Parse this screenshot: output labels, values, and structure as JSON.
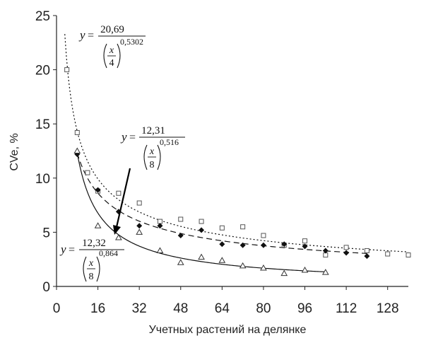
{
  "chart_data": {
    "type": "scatter",
    "xlabel": "Учетных растений на делянке",
    "ylabel": "CVe, %",
    "xlim": [
      0,
      136
    ],
    "ylim": [
      0,
      25
    ],
    "xticks": [
      "0",
      "16",
      "32",
      "48",
      "64",
      "80",
      "96",
      "112",
      "128"
    ],
    "yticks": [
      "0",
      "5",
      "10",
      "15",
      "20",
      "25"
    ],
    "grid": false,
    "legend": "none",
    "series": [
      {
        "marker": "open-square",
        "line_style": "dotted",
        "color": "#555555",
        "fit": {
          "a": 20.69,
          "k": 4,
          "b": 0.5302
        },
        "points": [
          [
            4,
            20
          ],
          [
            8,
            14.2
          ],
          [
            12,
            10.5
          ],
          [
            16,
            8.8
          ],
          [
            24,
            8.6
          ],
          [
            32,
            7.7
          ],
          [
            40,
            6.0
          ],
          [
            48,
            6.2
          ],
          [
            56,
            6.0
          ],
          [
            64,
            5.4
          ],
          [
            72,
            5.5
          ],
          [
            80,
            4.7
          ],
          [
            88,
            3.8
          ],
          [
            96,
            4.2
          ],
          [
            104,
            2.9
          ],
          [
            112,
            3.6
          ],
          [
            120,
            3.3
          ],
          [
            128,
            3.0
          ],
          [
            136,
            2.9
          ]
        ]
      },
      {
        "marker": "filled-diamond",
        "line_style": "dashed",
        "color": "#111111",
        "fit": {
          "a": 12.31,
          "k": 8,
          "b": 0.516
        },
        "points": [
          [
            8,
            12.2
          ],
          [
            16,
            8.9
          ],
          [
            24,
            6.9
          ],
          [
            32,
            5.6
          ],
          [
            40,
            5.6
          ],
          [
            48,
            4.7
          ],
          [
            56,
            5.2
          ],
          [
            64,
            3.9
          ],
          [
            72,
            3.8
          ],
          [
            80,
            3.8
          ],
          [
            88,
            3.9
          ],
          [
            96,
            3.7
          ],
          [
            104,
            3.3
          ],
          [
            112,
            3.1
          ],
          [
            120,
            2.8
          ]
        ]
      },
      {
        "marker": "open-triangle",
        "line_style": "solid",
        "color": "#333333",
        "fit": {
          "a": 12.32,
          "k": 8,
          "b": 0.864
        },
        "points": [
          [
            8,
            12.5
          ],
          [
            16,
            5.6
          ],
          [
            24,
            4.5
          ],
          [
            32,
            5.0
          ],
          [
            40,
            3.3
          ],
          [
            48,
            2.2
          ],
          [
            56,
            2.7
          ],
          [
            64,
            2.4
          ],
          [
            72,
            1.9
          ],
          [
            80,
            1.7
          ],
          [
            88,
            1.2
          ],
          [
            96,
            1.5
          ],
          [
            104,
            1.3
          ]
        ]
      }
    ],
    "annotations": {
      "eq1": {
        "y": "y",
        "eq": "=",
        "num": "20,69",
        "x": "x",
        "den": "4",
        "exp": "0,5302"
      },
      "eq2": {
        "y": "y",
        "eq": "=",
        "num": "12,31",
        "x": "x",
        "den": "8",
        "exp": "0,516"
      },
      "eq3": {
        "y": "y",
        "eq": "=",
        "num": "12,32",
        "x": "x",
        "den": "8",
        "exp": "0,864"
      }
    }
  }
}
